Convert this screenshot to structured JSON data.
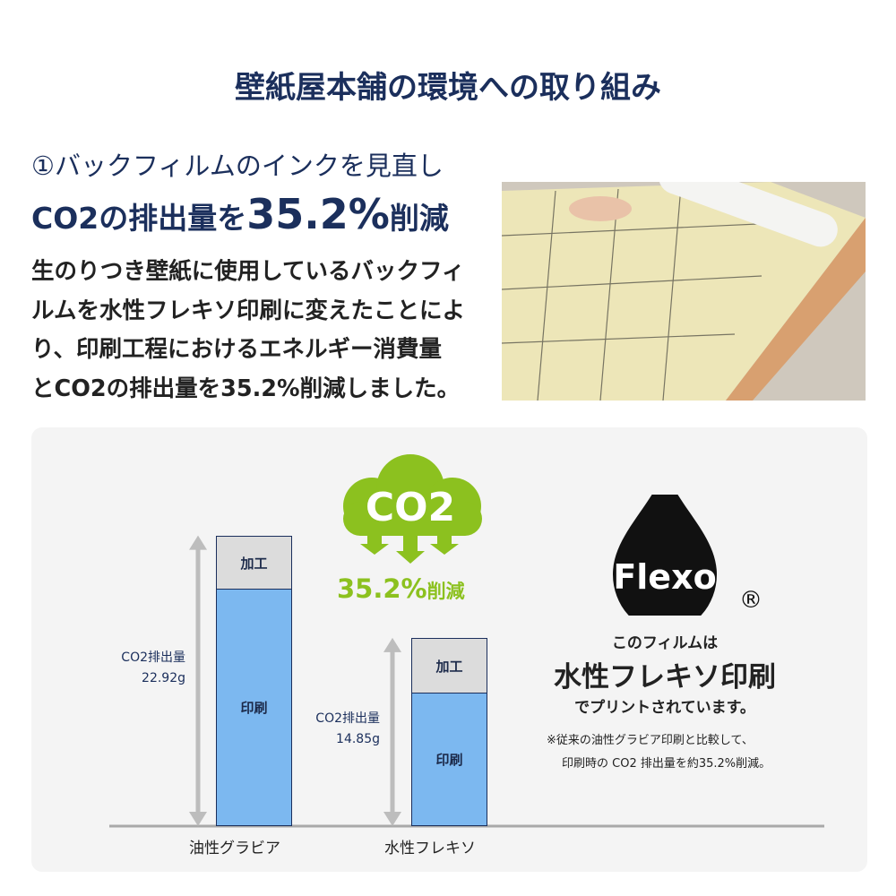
{
  "title": "壁紙屋本舗の環境への取り組み",
  "subtitle": "①バックフィルムのインクを見直し",
  "headline": {
    "prefix": "CO2の排出量を",
    "value": "35.2%",
    "suffix": "削減"
  },
  "paragraph": [
    "生のりつき壁紙に使用しているバックフィ",
    "ルムを水性フレキソ印刷に変えたことによ",
    "り、印刷工程におけるエネルギー消費量",
    "とCO2の排出量を35.2%削減しました。"
  ],
  "infographic": {
    "cloud_label": "CO2",
    "reduction": "35.2%",
    "reduction_suffix": "削減",
    "logo_text": "Flexo",
    "registered": "®",
    "film_line1": "このフィルムは",
    "film_line2": "水性フレキソ印刷",
    "film_line3": "でプリントされています。",
    "note1": "※従来の油性グラビア印刷と比較して、",
    "note2": "印刷時の CO2 排出量を約35.2%削減。"
  },
  "chart_data": {
    "type": "bar",
    "stacked": true,
    "categories": [
      "油性グラビア",
      "水性フレキソ"
    ],
    "segment_labels": {
      "printing": "印刷",
      "processing": "加工"
    },
    "series": [
      {
        "name": "印刷",
        "values": [
          18.7,
          10.5
        ]
      },
      {
        "name": "加工",
        "values": [
          4.22,
          4.35
        ]
      }
    ],
    "totals": [
      22.92,
      14.85
    ],
    "total_labels": [
      {
        "line1": "CO2排出量",
        "line2": "22.92g"
      },
      {
        "line1": "CO2排出量",
        "line2": "14.85g"
      }
    ],
    "colors": {
      "printing": "#7cb8f0",
      "processing": "#dcdcdc",
      "accent": "#8cc11f"
    }
  }
}
